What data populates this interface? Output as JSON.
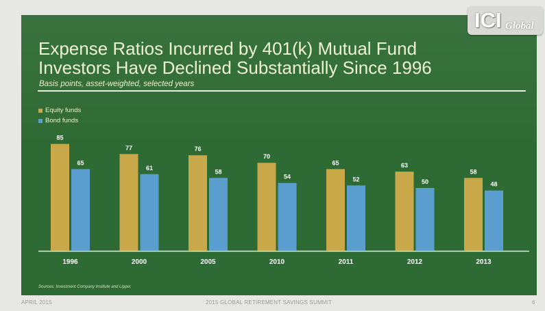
{
  "slide": {
    "title_line1": "Expense Ratios Incurred by 401(k) Mutual Fund",
    "title_line2": "Investors Have Declined Substantially Since 1996",
    "subtitle": "Basis points, asset-weighted, selected years",
    "source": "Sources: Investment Company Institute and Lipper",
    "logo": {
      "main": "ICI",
      "sub": "Global"
    }
  },
  "footer": {
    "left": "APRIL 2015",
    "center": "2015 GLOBAL RETIREMENT SAVINGS SUMMIT",
    "right": "6"
  },
  "colors": {
    "background": "#2e6a33",
    "equity": "#c9a84a",
    "bond": "#5a9ed0",
    "text": "#eef2cf"
  },
  "chart_data": {
    "type": "bar",
    "title": "Expense Ratios Incurred by 401(k) Mutual Fund Investors Have Declined Substantially Since 1996",
    "subtitle": "Basis points, asset-weighted, selected years",
    "categories": [
      "1996",
      "2000",
      "2005",
      "2010",
      "2011",
      "2012",
      "2013"
    ],
    "series": [
      {
        "name": "Equity funds",
        "values": [
          85,
          77,
          76,
          70,
          65,
          63,
          58
        ],
        "color": "#c9a84a"
      },
      {
        "name": "Bond funds",
        "values": [
          65,
          61,
          58,
          54,
          52,
          50,
          48
        ],
        "color": "#5a9ed0"
      }
    ],
    "ylim": [
      0,
      100
    ],
    "grid": false,
    "legend_position": "top-left",
    "data_labels": true
  }
}
